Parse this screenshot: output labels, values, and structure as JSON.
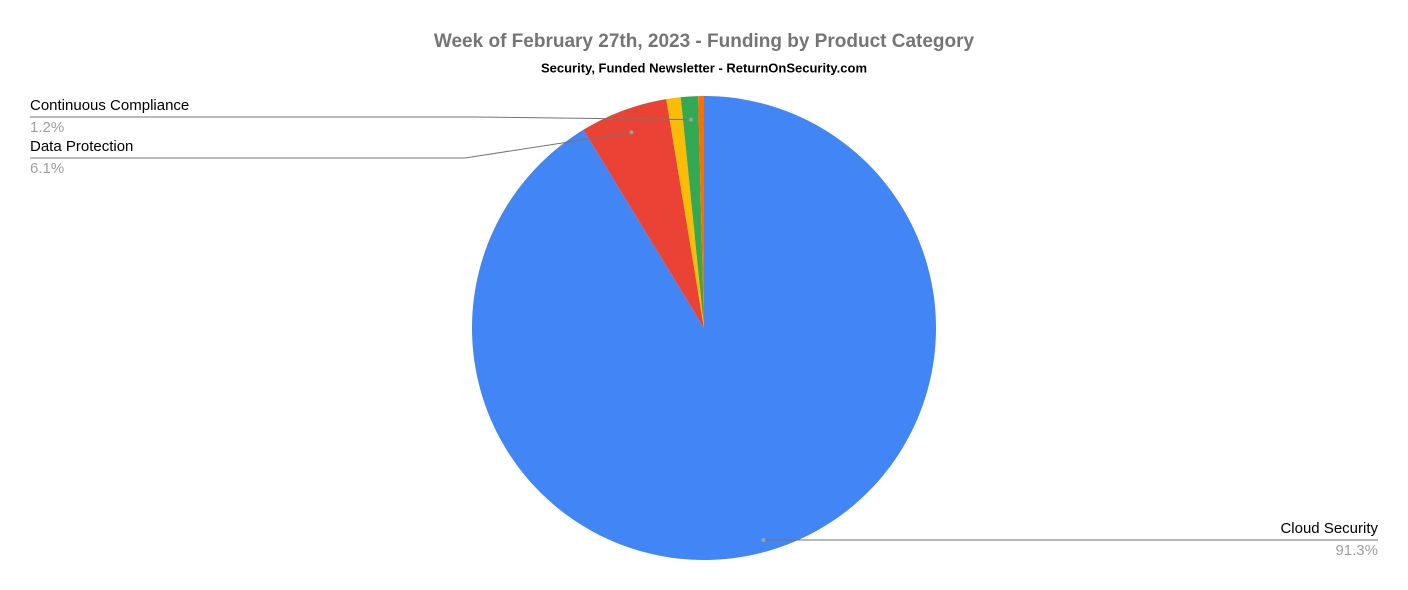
{
  "chart_data": {
    "type": "pie",
    "title": "Week of February 27th, 2023 - Funding by Product Category",
    "subtitle": "Security, Funded Newsletter - ReturnOnSecurity.com",
    "categories": [
      "Cloud Security",
      "Data Protection",
      null,
      "Continuous Compliance",
      null
    ],
    "values": [
      91.3,
      6.1,
      1.0,
      1.2,
      0.4
    ],
    "value_labels": [
      "91.3%",
      "6.1%",
      null,
      "1.2%",
      null
    ],
    "colors": [
      "#4285f4",
      "#ea4335",
      "#fbbc04",
      "#34a853",
      "#ff6d01"
    ]
  }
}
